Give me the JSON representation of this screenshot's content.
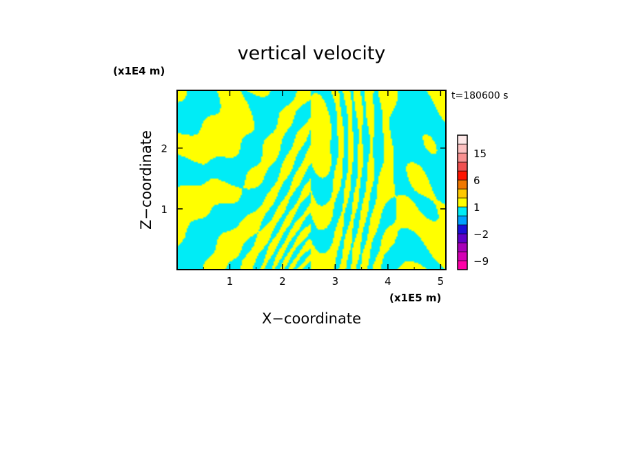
{
  "chart_data": {
    "type": "heatmap",
    "title": "vertical velocity",
    "xlabel": "X−coordinate",
    "ylabel": "Z−coordinate",
    "x_unit_label": "(x1E5 m)",
    "y_unit_label": "(x1E4 m)",
    "time_label": "t=180600 s",
    "xlim": [
      0.0,
      5.1
    ],
    "ylim": [
      0.0,
      2.95
    ],
    "x_ticks": [
      1,
      2,
      3,
      4,
      5
    ],
    "x_tick_labels": [
      "1",
      "2",
      "3",
      "4",
      "5"
    ],
    "y_ticks": [
      1,
      2
    ],
    "y_tick_labels": [
      "1",
      "2"
    ],
    "field_colors": {
      "positive": "#ffff00",
      "negative": "#00ecf6"
    },
    "colorbar": {
      "levels": [
        -12,
        -9,
        -6,
        -4,
        -2,
        -1,
        0,
        1,
        2,
        4,
        6,
        9,
        12,
        15,
        18,
        21
      ],
      "colors": [
        "#ff00a8",
        "#d400b4",
        "#a800b8",
        "#6000c8",
        "#1a0fd8",
        "#00a0ff",
        "#00ecf6",
        "#ffff00",
        "#ffc800",
        "#f07800",
        "#ff1400",
        "#f05050",
        "#f89090",
        "#fcc0c0",
        "#fde8e8"
      ],
      "tick_labels": [
        {
          "value": -9,
          "label": "−9"
        },
        {
          "value": -2,
          "label": "−2"
        },
        {
          "value": 1,
          "label": "1"
        },
        {
          "value": 6,
          "label": "6"
        },
        {
          "value": 15,
          "label": "15"
        }
      ]
    }
  }
}
